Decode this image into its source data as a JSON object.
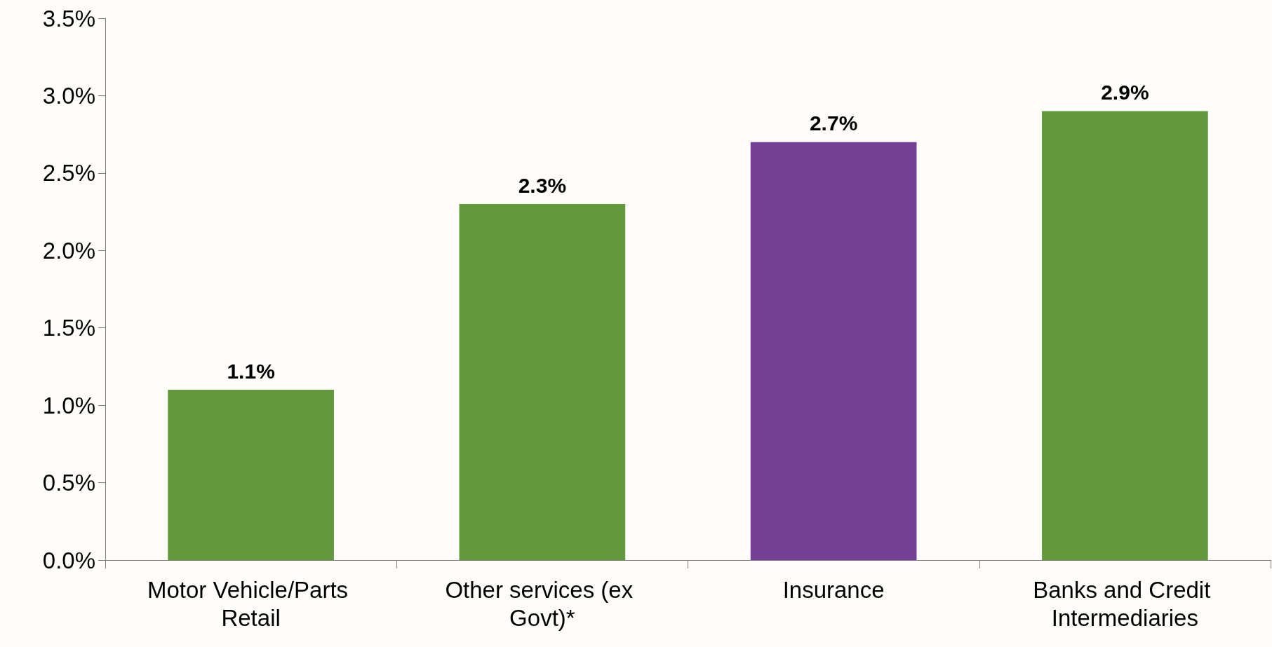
{
  "chart_data": {
    "type": "bar",
    "categories": [
      "Motor Vehicle/Parts Retail",
      "Other services (ex Govt)*",
      "Insurance",
      "Banks and Credit Intermediaries"
    ],
    "values": [
      1.1,
      2.3,
      2.7,
      2.9
    ],
    "colors": [
      "#639a3e",
      "#639a3e",
      "#753f96",
      "#639a3e"
    ],
    "value_labels": [
      "1.1%",
      "2.3%",
      "2.7%",
      "2.9%"
    ],
    "ylim": [
      0,
      3.5
    ],
    "yticks": [
      {
        "value": 0,
        "label": "0.0%"
      },
      {
        "value": 0.5,
        "label": "0.5%"
      },
      {
        "value": 1,
        "label": "1.0%"
      },
      {
        "value": 1.5,
        "label": "1.5%"
      },
      {
        "value": 2,
        "label": "2.0%"
      },
      {
        "value": 2.5,
        "label": "2.5%"
      },
      {
        "value": 3,
        "label": "3.0%"
      },
      {
        "value": 3.5,
        "label": "3.5%"
      }
    ],
    "grid": false
  }
}
